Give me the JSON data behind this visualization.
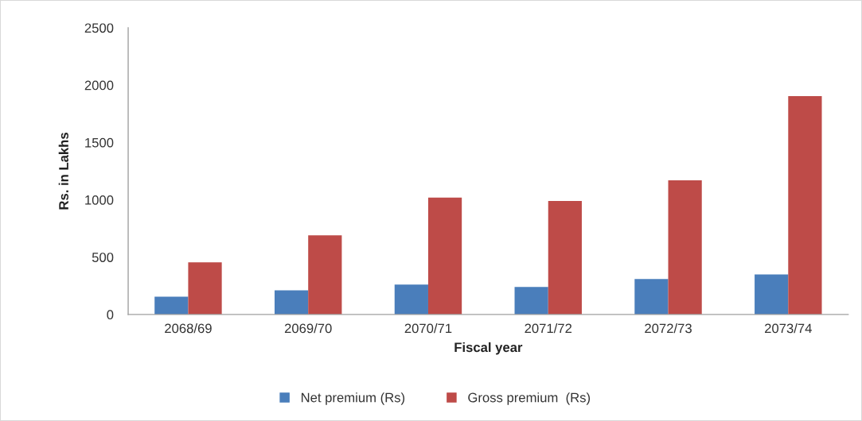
{
  "chart_data": {
    "type": "bar",
    "xlabel": "Fiscal year",
    "ylabel": "Rs. in Lakhs",
    "categories": [
      "2068/69",
      "2069/70",
      "2070/71",
      "2071/72",
      "2072/73",
      "2073/74"
    ],
    "series": [
      {
        "name": "Net premium (Rs)",
        "color": "#4a7ebb",
        "values": [
          155,
          210,
          260,
          240,
          310,
          350
        ]
      },
      {
        "name": "Gross premium  (Rs)",
        "color": "#be4b48",
        "values": [
          455,
          690,
          1020,
          990,
          1170,
          1905
        ]
      }
    ],
    "ylim": [
      0,
      2500
    ],
    "yticks": [
      0,
      500,
      1000,
      1500,
      2000,
      2500
    ],
    "grid": false,
    "legend": "bottom"
  }
}
